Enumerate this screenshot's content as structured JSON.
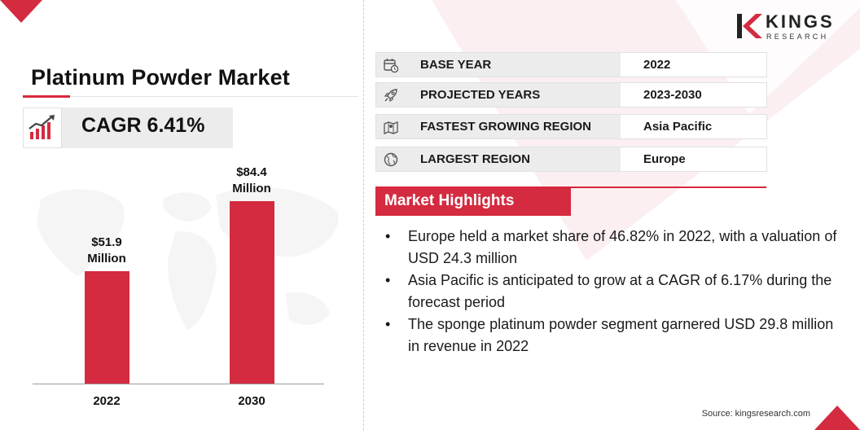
{
  "brand": {
    "logo_text": "KINGS",
    "logo_subtext": "RESEARCH",
    "accent_color": "#d42b40"
  },
  "title": "Platinum Powder Market",
  "cagr": {
    "icon": "growth-chart-icon",
    "text": "CAGR 6.41%"
  },
  "chart_data": {
    "type": "bar",
    "categories": [
      "2022",
      "2030"
    ],
    "values": [
      51.9,
      84.4
    ],
    "data_labels": [
      [
        "$51.9",
        "Million"
      ],
      [
        "$84.4",
        "Million"
      ]
    ],
    "title": "",
    "xlabel": "",
    "ylabel": "",
    "ylim": [
      0,
      100
    ],
    "grid": false,
    "bar_color": "#d42b40"
  },
  "info_table": [
    {
      "icon": "calendar-clock-icon",
      "label": "BASE YEAR",
      "value": "2022"
    },
    {
      "icon": "rocket-icon",
      "label": "PROJECTED YEARS",
      "value": "2023-2030"
    },
    {
      "icon": "region-map-icon",
      "label": "FASTEST GROWING REGION",
      "value": "Asia Pacific"
    },
    {
      "icon": "globe-icon",
      "label": "LARGEST REGION",
      "value": "Europe"
    }
  ],
  "highlights": {
    "heading": "Market Highlights",
    "items": [
      "Europe held a market share of 46.82% in 2022, with a valuation of USD 24.3 million",
      "Asia Pacific is anticipated to grow at a CAGR of 6.17% during the forecast period",
      "The sponge platinum powder segment garnered USD 29.8 million in revenue in 2022"
    ]
  },
  "source": "Source: kingsresearch.com"
}
